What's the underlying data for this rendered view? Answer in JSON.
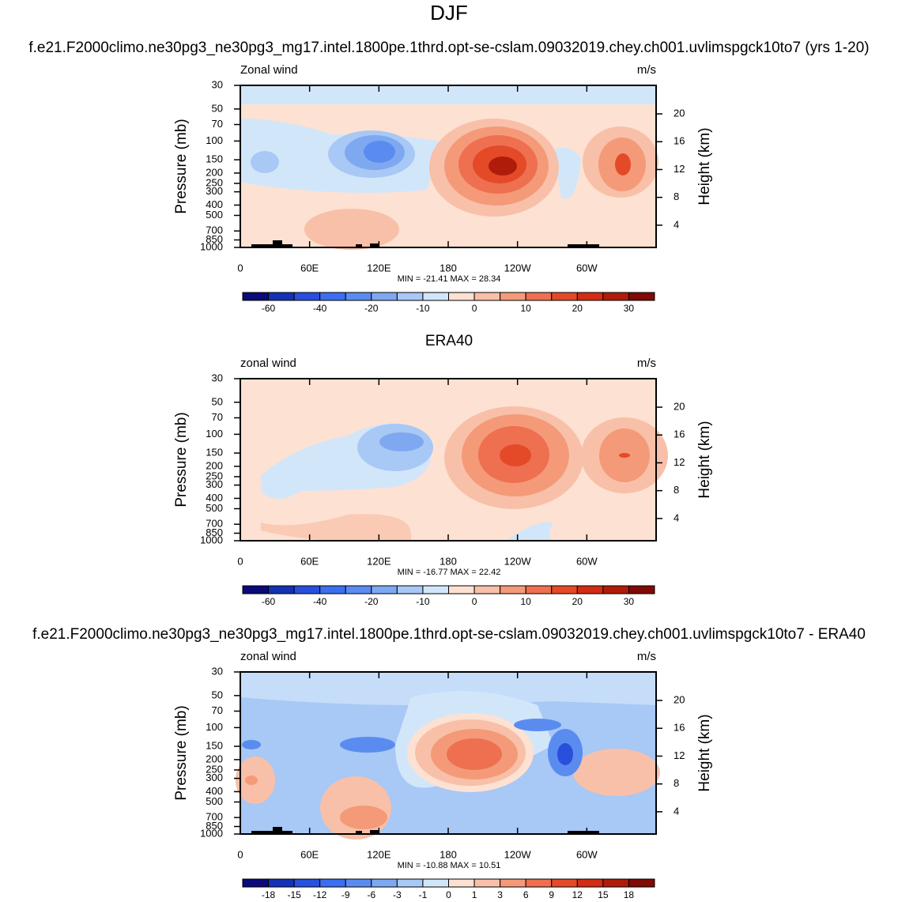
{
  "title": "DJF",
  "chart_data": [
    {
      "type": "contour",
      "title": "f.e21.F2000climo.ne30pg3_ne30pg3_mg17.intel.1800pe.1thrd.opt-se-cslam.09032019.chey.ch001.uvlimspgck10to7 (yrs 1-20)",
      "left_label": "Zonal wind",
      "right_label": "m/s",
      "ylabel": "Pressure (mb)",
      "y2label": "Height (km)",
      "log_y": true,
      "ylim": [
        1000,
        30
      ],
      "yticks": [
        30,
        50,
        70,
        100,
        150,
        200,
        250,
        300,
        400,
        500,
        700,
        850,
        1000
      ],
      "y2lim": [
        0.8,
        24.1
      ],
      "y2ticks": [
        4,
        8,
        12,
        16,
        20
      ],
      "xlim": [
        0,
        360
      ],
      "xticks": [
        0,
        {
          "value": 60,
          "label": "60E"
        },
        {
          "value": 120,
          "label": "120E"
        },
        180,
        {
          "value": 240,
          "label": "120W"
        },
        {
          "value": 300,
          "label": "60W"
        }
      ],
      "stats": "MIN = -21.41  MAX =  28.34",
      "colorbar": {
        "colors": [
          "#0a0a78",
          "#1432b4",
          "#2850dc",
          "#3c6ef0",
          "#5a8cf0",
          "#7ea8f0",
          "#a8c8f5",
          "#d2e6fa",
          "#fde1d2",
          "#f8c0a8",
          "#f49a78",
          "#ee7050",
          "#e44a28",
          "#d22c14",
          "#b01c0a",
          "#800a05"
        ],
        "labels": [
          -60,
          -40,
          -20,
          -10,
          0,
          10,
          20,
          30
        ]
      }
    },
    {
      "type": "contour",
      "title": "ERA40",
      "left_label": "zonal wind",
      "right_label": "m/s",
      "ylabel": "Pressure (mb)",
      "y2label": "Height (km)",
      "log_y": true,
      "ylim": [
        1000,
        30
      ],
      "yticks": [
        30,
        50,
        70,
        100,
        150,
        200,
        250,
        300,
        400,
        500,
        700,
        850,
        1000
      ],
      "y2lim": [
        0.8,
        24.1
      ],
      "y2ticks": [
        4,
        8,
        12,
        16,
        20
      ],
      "xlim": [
        0,
        360
      ],
      "xticks": [
        0,
        {
          "value": 60,
          "label": "60E"
        },
        {
          "value": 120,
          "label": "120E"
        },
        180,
        {
          "value": 240,
          "label": "120W"
        },
        {
          "value": 300,
          "label": "60W"
        }
      ],
      "stats": "MIN = -16.77  MAX =  22.42",
      "colorbar": {
        "colors": [
          "#0a0a78",
          "#1432b4",
          "#2850dc",
          "#3c6ef0",
          "#5a8cf0",
          "#7ea8f0",
          "#a8c8f5",
          "#d2e6fa",
          "#fde1d2",
          "#f8c0a8",
          "#f49a78",
          "#ee7050",
          "#e44a28",
          "#d22c14",
          "#b01c0a",
          "#800a05"
        ],
        "labels": [
          -60,
          -40,
          -20,
          -10,
          0,
          10,
          20,
          30
        ]
      }
    },
    {
      "type": "contour",
      "title": "f.e21.F2000climo.ne30pg3_ne30pg3_mg17.intel.1800pe.1thrd.opt-se-cslam.09032019.chey.ch001.uvlimspgck10to7 - ERA40",
      "left_label": "zonal wind",
      "right_label": "m/s",
      "ylabel": "Pressure (mb)",
      "y2label": "Height (km)",
      "log_y": true,
      "ylim": [
        1000,
        30
      ],
      "yticks": [
        30,
        50,
        70,
        100,
        150,
        200,
        250,
        300,
        400,
        500,
        700,
        850,
        1000
      ],
      "y2lim": [
        0.8,
        24.1
      ],
      "y2ticks": [
        4,
        8,
        12,
        16,
        20
      ],
      "xlim": [
        0,
        360
      ],
      "xticks": [
        0,
        {
          "value": 60,
          "label": "60E"
        },
        {
          "value": 120,
          "label": "120E"
        },
        180,
        {
          "value": 240,
          "label": "120W"
        },
        {
          "value": 300,
          "label": "60W"
        }
      ],
      "stats": "MIN = -10.88  MAX =  10.51",
      "colorbar": {
        "colors": [
          "#0a0a78",
          "#1432b4",
          "#2850dc",
          "#3c6ef0",
          "#5a8cf0",
          "#7ea8f0",
          "#a8c8f5",
          "#d2e6fa",
          "#fde1d2",
          "#f8c0a8",
          "#f49a78",
          "#ee7050",
          "#e44a28",
          "#d22c14",
          "#b01c0a",
          "#800a05"
        ],
        "labels": [
          -18,
          -15,
          -12,
          -9,
          -6,
          -3,
          -1,
          0,
          1,
          3,
          6,
          9,
          12,
          15,
          18
        ]
      }
    }
  ]
}
